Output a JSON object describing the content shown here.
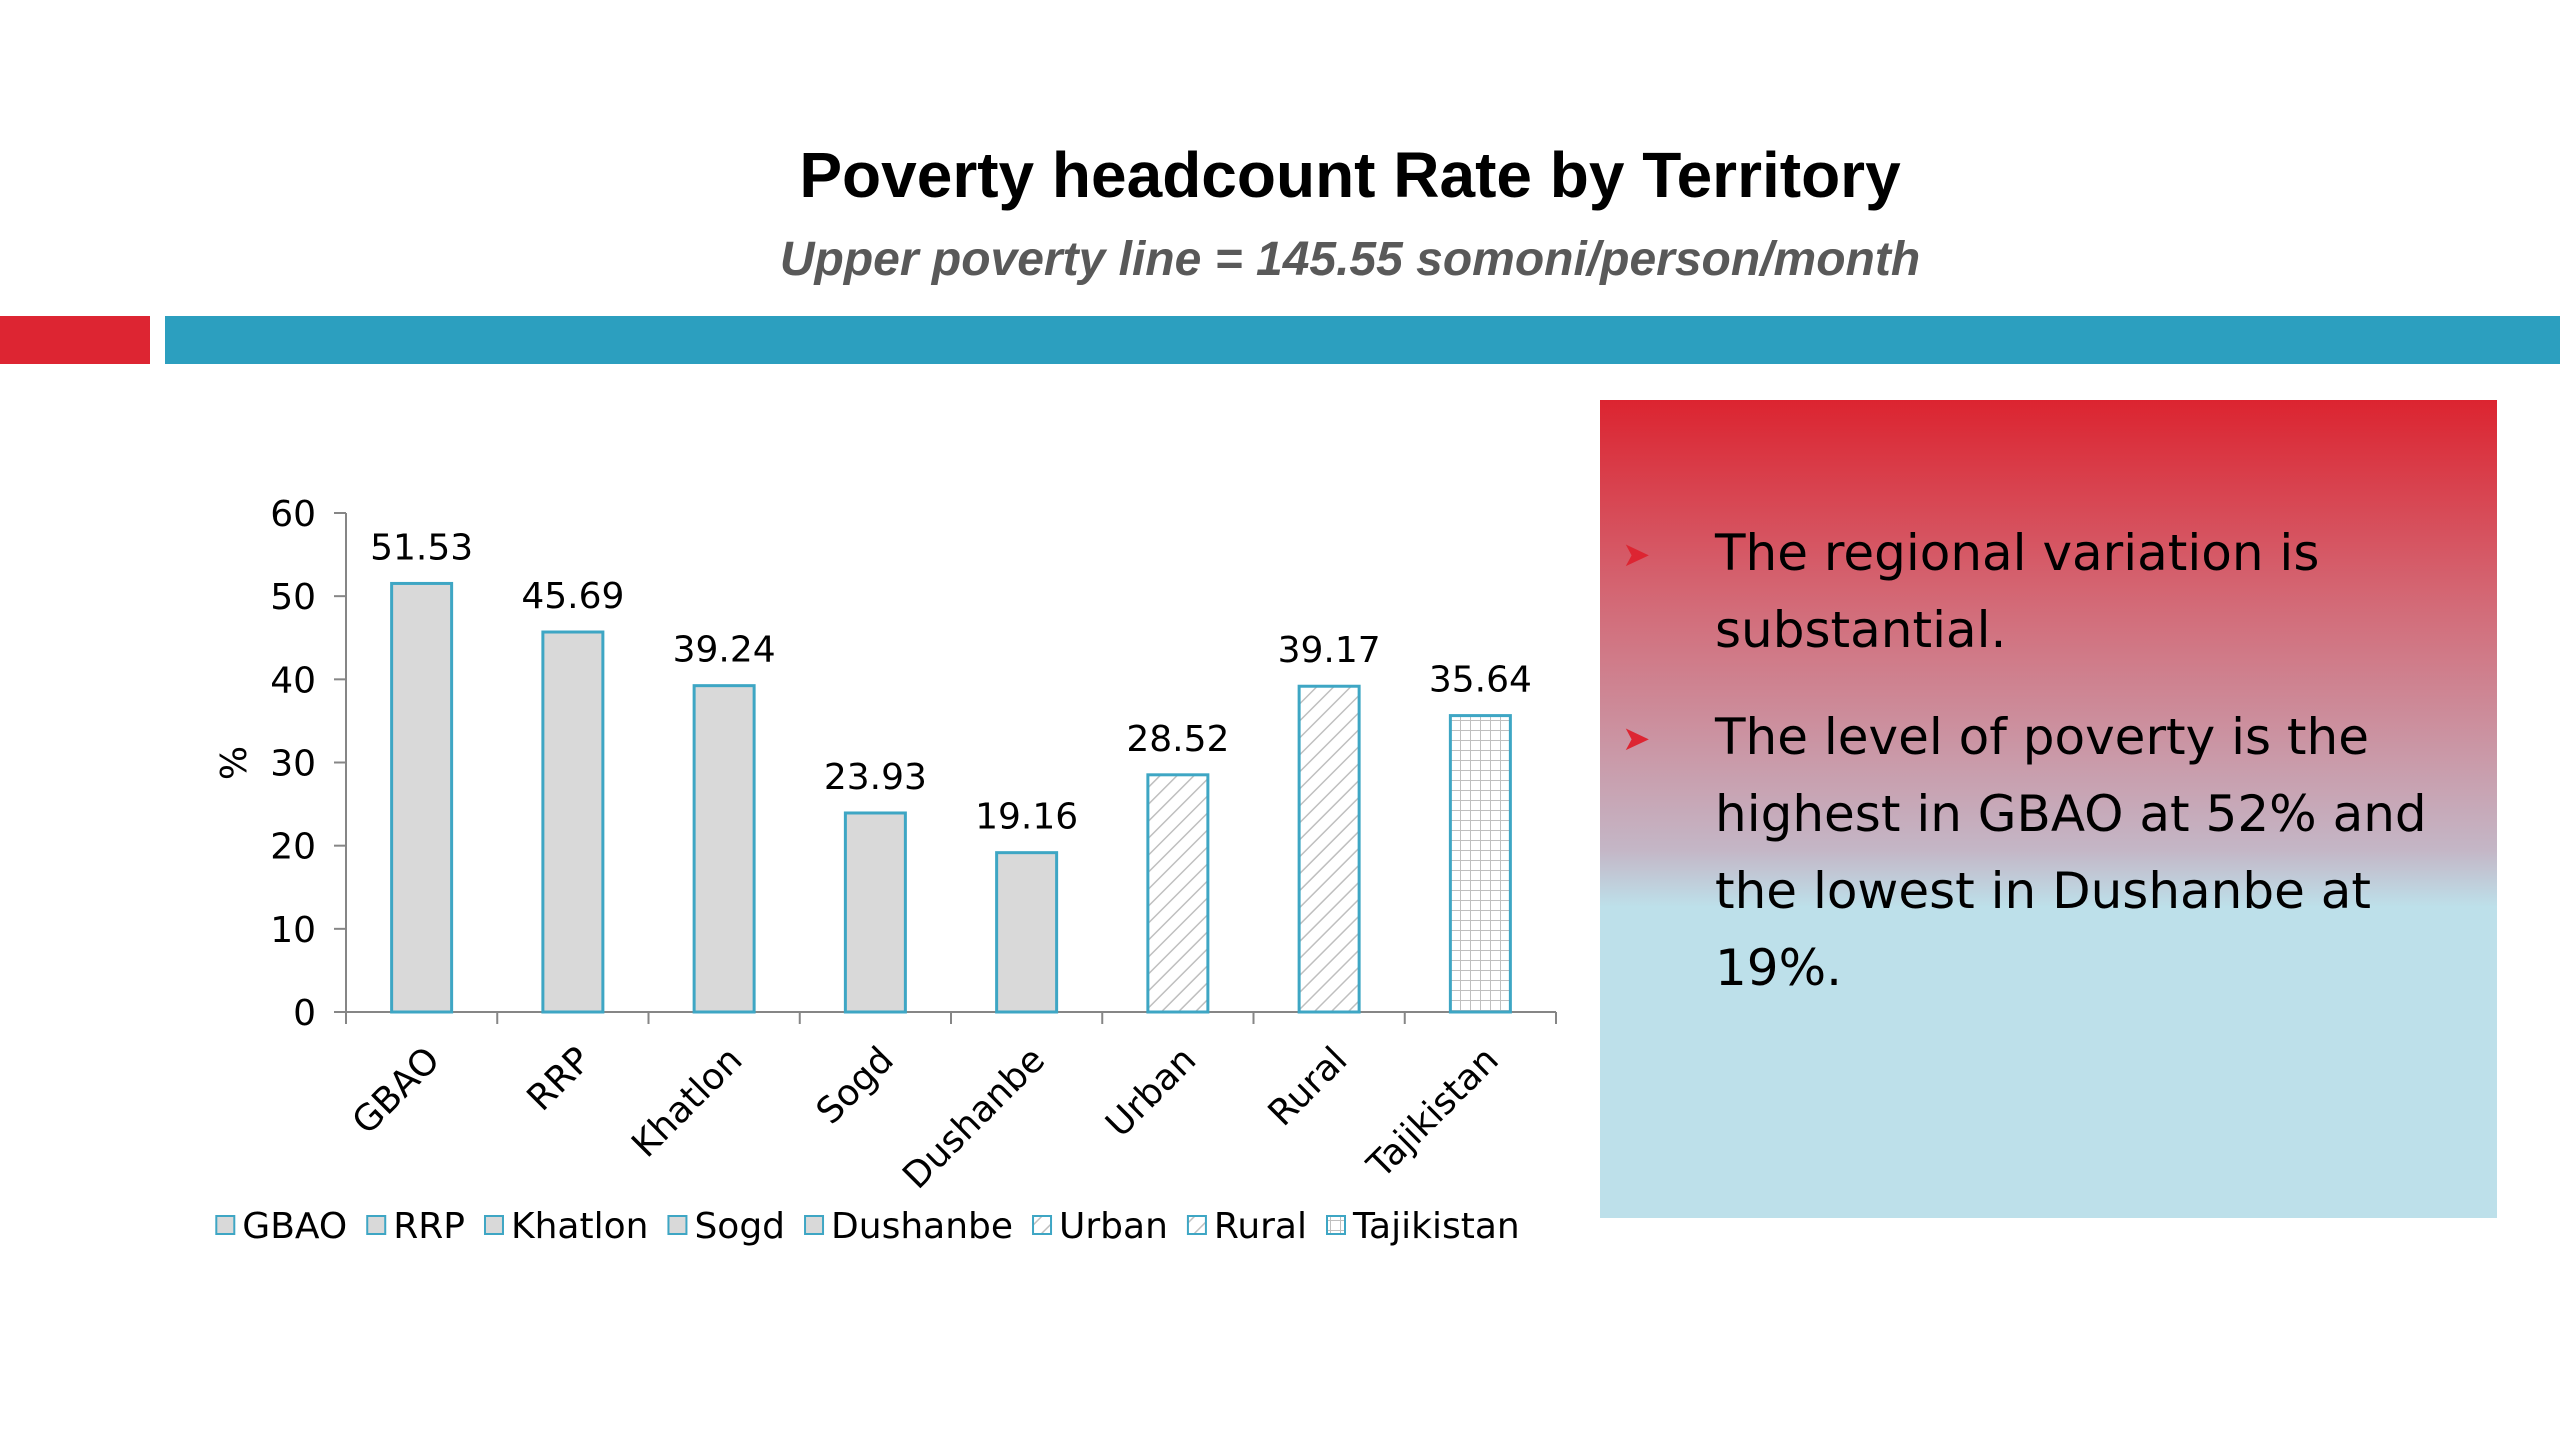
{
  "header": {
    "title": "Poverty headcount Rate by Territory",
    "subtitle": "Upper poverty line = 145.55 somoni/person/month"
  },
  "colors": {
    "accent_red": "#dd2532",
    "accent_teal": "#2c9fbf",
    "bar_fill": "#d9d9d9",
    "bar_border": "#3ea6c4"
  },
  "chart_data": {
    "type": "bar",
    "title": "",
    "xlabel": "",
    "ylabel": "%",
    "ylim": [
      0,
      60
    ],
    "yticks": [
      0,
      10,
      20,
      30,
      40,
      50,
      60
    ],
    "categories": [
      "GBAO",
      "RRP",
      "Khatlon",
      "Sogd",
      "Dushanbe",
      "Urban",
      "Rural",
      "Tajikistan"
    ],
    "values": [
      51.53,
      45.69,
      39.24,
      23.93,
      19.16,
      28.52,
      39.17,
      35.64
    ],
    "value_labels": [
      "51.53",
      "45.69",
      "39.24",
      "23.93",
      "19.16",
      "28.52",
      "39.17",
      "35.64"
    ],
    "patterns": [
      "solid",
      "solid",
      "solid",
      "solid",
      "solid",
      "diagonal",
      "diagonal",
      "grid"
    ],
    "grid": false,
    "legend": {
      "placement": "bottom",
      "entries": [
        "GBAO",
        "RRP",
        "Khatlon",
        "Sogd",
        "Dushanbe",
        "Urban",
        "Rural",
        "Tajikistan"
      ]
    }
  },
  "panel": {
    "bullet_icon": "arrow-bullet-icon",
    "bullets": [
      "The regional variation is substantial.",
      "The level of poverty is the highest in GBAO at 52% and the lowest in Dushanbe at 19%."
    ]
  }
}
